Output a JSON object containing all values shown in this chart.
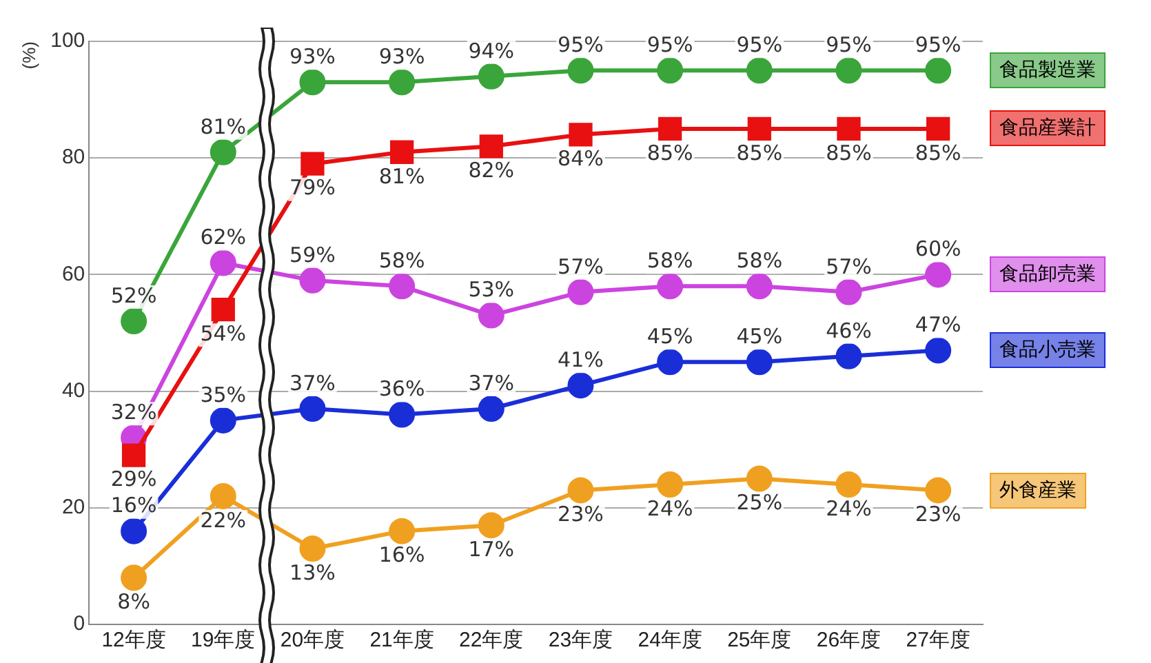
{
  "chart_data": {
    "type": "line",
    "ylabel": "(%)",
    "categories": [
      "12年度",
      "19年度",
      "20年度",
      "21年度",
      "22年度",
      "23年度",
      "24年度",
      "25年度",
      "26年度",
      "27年度"
    ],
    "ylim": [
      0,
      100
    ],
    "yticks": [
      0,
      20,
      40,
      60,
      80,
      100
    ],
    "grid": "y",
    "legend": "right",
    "marker": "circle",
    "line_style": "solid",
    "series": [
      {
        "name": "食品製造業",
        "color": "#3aa53a",
        "values": [
          52,
          81,
          93,
          93,
          94,
          95,
          95,
          95,
          95,
          95
        ],
        "value_labels": [
          "52%",
          "81%",
          "93%",
          "93%",
          "94%",
          "95%",
          "95%",
          "95%",
          "95%",
          "95%"
        ]
      },
      {
        "name": "食品産業計",
        "color": "#e81010",
        "marker": "square",
        "values": [
          29,
          54,
          79,
          81,
          82,
          84,
          85,
          85,
          85,
          85
        ],
        "value_labels": [
          "29%",
          "54%",
          "79%",
          "81%",
          "82%",
          "84%",
          "85%",
          "85%",
          "85%",
          "85%"
        ]
      },
      {
        "name": "食品卸売業",
        "color": "#cc44e0",
        "values": [
          32,
          62,
          59,
          58,
          53,
          57,
          58,
          58,
          57,
          60
        ],
        "value_labels": [
          "32%",
          "62%",
          "59%",
          "58%",
          "53%",
          "57%",
          "58%",
          "58%",
          "57%",
          "60%"
        ]
      },
      {
        "name": "食品小売業",
        "color": "#1a2ed8",
        "values": [
          16,
          35,
          37,
          36,
          37,
          41,
          45,
          45,
          46,
          47
        ],
        "value_labels": [
          "16%",
          "35%",
          "37%",
          "36%",
          "37%",
          "41%",
          "45%",
          "45%",
          "46%",
          "47%"
        ]
      },
      {
        "name": "外食産業",
        "color": "#f0a020",
        "values": [
          8,
          22,
          13,
          16,
          17,
          23,
          24,
          25,
          24,
          23
        ],
        "value_labels": [
          "8%",
          "22%",
          "13%",
          "16%",
          "17%",
          "23%",
          "24%",
          "25%",
          "24%",
          "23%"
        ]
      }
    ]
  }
}
